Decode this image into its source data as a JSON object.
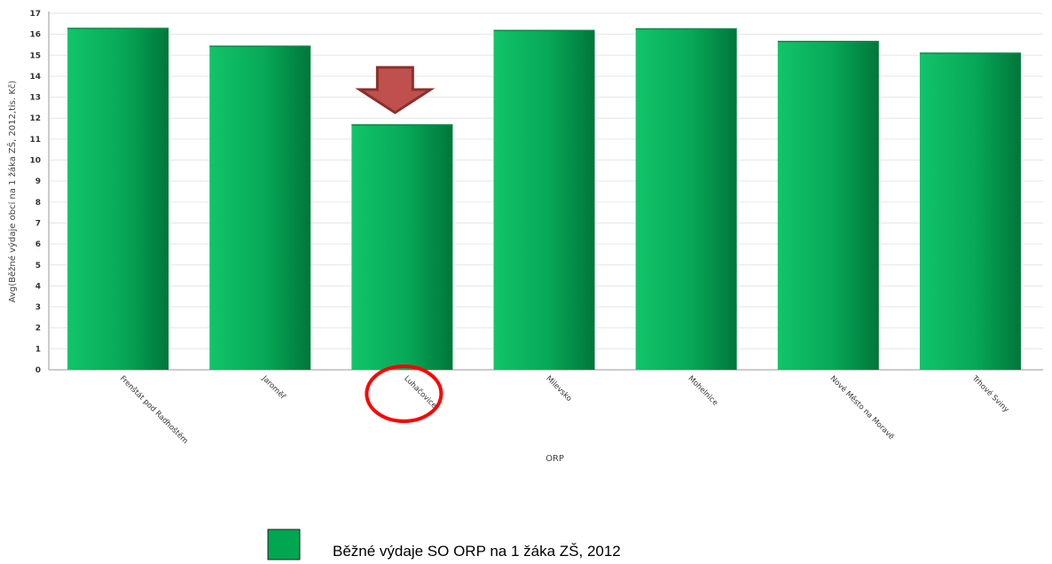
{
  "chart_data": {
    "type": "bar",
    "title": "",
    "ylabel": "Avg(Běžné výdaje obcí na 1 žáka ZŠ, 2012,tis. Kč)",
    "xlabel": "ORP",
    "ylim": [
      0,
      17
    ],
    "yticks": [
      0,
      1,
      2,
      3,
      4,
      5,
      6,
      7,
      8,
      9,
      10,
      11,
      12,
      13,
      14,
      15,
      16,
      17
    ],
    "grid": true,
    "categories": [
      "Frenštát pod Radhoštěm",
      "Jaroměř",
      "Luhačovice",
      "Milevsko",
      "Mohelnice",
      "Nové Město na Moravě",
      "Trhové Sviny"
    ],
    "series": [
      {
        "name": "Běžné výdaje SO ORP na 1 žáka ZŠ, 2012",
        "values": [
          16.3,
          15.45,
          11.7,
          16.2,
          16.28,
          15.68,
          15.12
        ],
        "color": "#00a650"
      }
    ],
    "legend_position": "bottom",
    "annotations": {
      "highlighted_category": "Luhačovice",
      "arrow_color": "#c0504d",
      "circle_color": "#ff0000"
    }
  }
}
